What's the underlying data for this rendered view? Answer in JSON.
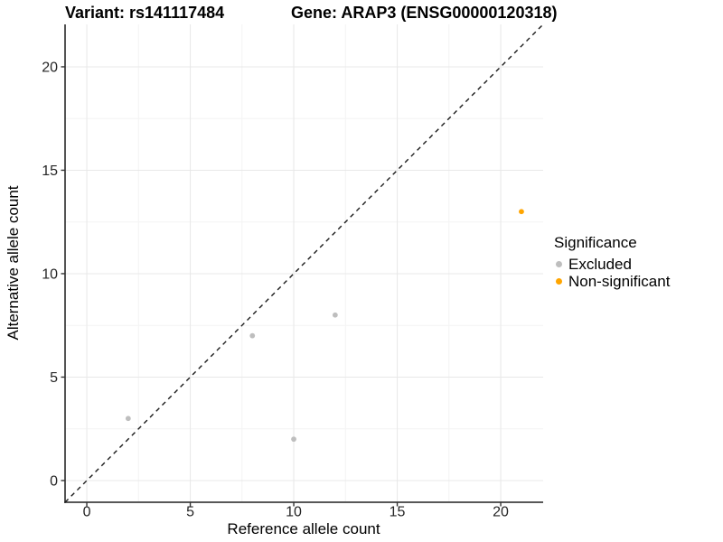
{
  "title": {
    "variant": "Variant: rs141117484",
    "gene": "Gene: ARAP3 (ENSG00000120318)"
  },
  "axes": {
    "x_label": "Reference allele count",
    "y_label": "Alternative allele count"
  },
  "legend": {
    "title": "Significance",
    "items": [
      {
        "label": "Excluded",
        "color": "#BEBEBE"
      },
      {
        "label": "Non-significant",
        "color": "#FFA500"
      }
    ]
  },
  "colors": {
    "background": "#ffffff",
    "grid_major": "#E8E8E8",
    "grid_minor": "#F3F3F3",
    "axis_line": "#404040",
    "tick_mark": "#333333",
    "identity_line": "#1a1a1a",
    "excluded_point": "#BEBEBE",
    "nonsignificant_point": "#FFA500"
  },
  "chart_data": {
    "type": "scatter",
    "title": "Variant: rs141117484  |  Gene: ARAP3 (ENSG00000120318)",
    "xlabel": "Reference allele count",
    "ylabel": "Alternative allele count",
    "xlim": [
      -1.05,
      22.05
    ],
    "ylim": [
      -1.05,
      22.05
    ],
    "x_ticks": [
      0,
      5,
      10,
      15,
      20
    ],
    "y_ticks": [
      0,
      5,
      10,
      15,
      20
    ],
    "x_minor_ticks": [
      2.5,
      7.5,
      12.5,
      17.5
    ],
    "y_minor_ticks": [
      2.5,
      7.5,
      12.5,
      17.5
    ],
    "grid": true,
    "legend_position": "right",
    "legend_title": "Significance",
    "identity_line": {
      "style": "dashed",
      "intercept": 0,
      "slope": 1
    },
    "series": [
      {
        "name": "Excluded",
        "color": "#BEBEBE",
        "points": [
          [
            2,
            3
          ],
          [
            8,
            7
          ],
          [
            10,
            2
          ],
          [
            12,
            8
          ]
        ]
      },
      {
        "name": "Non-significant",
        "color": "#FFA500",
        "points": [
          [
            21,
            13
          ]
        ]
      }
    ]
  }
}
